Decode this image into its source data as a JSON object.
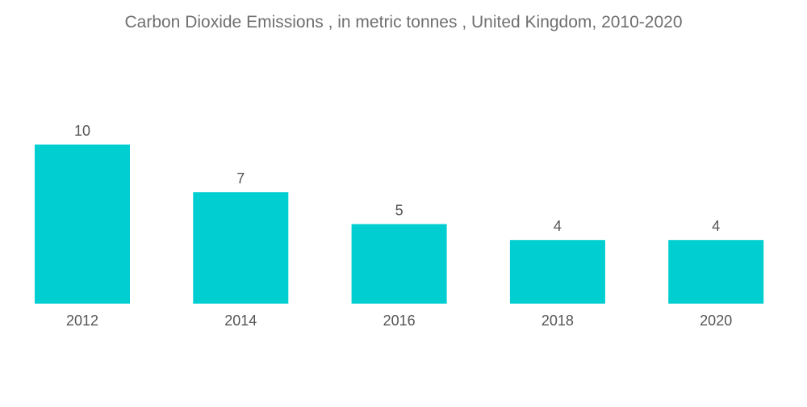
{
  "chart_data": {
    "type": "bar",
    "title": "Carbon Dioxide Emissions , in metric tonnes , United Kingdom, 2010-2020",
    "categories": [
      "2012",
      "2014",
      "2016",
      "2018",
      "2020"
    ],
    "values": [
      10,
      7,
      5,
      4,
      4
    ],
    "xlabel": "",
    "ylabel": "",
    "ylim": [
      0,
      10
    ],
    "grid": false,
    "legend": "none",
    "bar_color": "#00ced1",
    "label_color": "#555555",
    "title_color": "#6f6f6f"
  }
}
